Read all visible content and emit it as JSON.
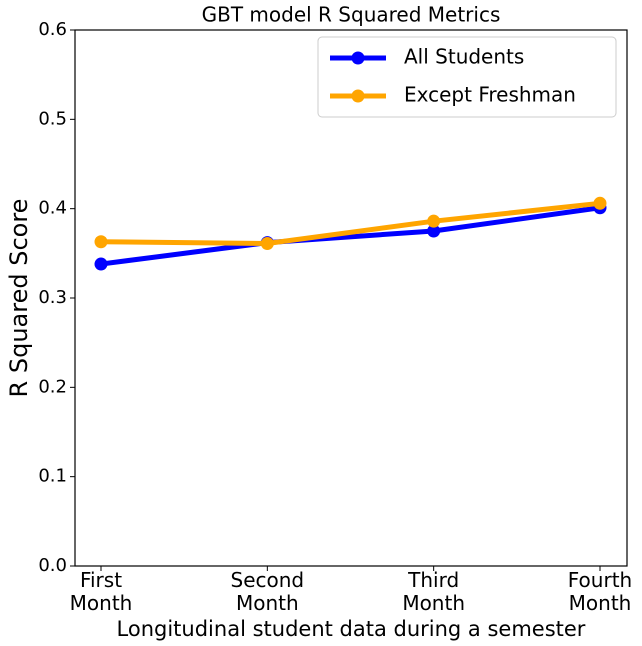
{
  "chart_data": {
    "type": "line",
    "title": "GBT model R Squared Metrics",
    "x_label": "Longitudinal student data during a semester",
    "y_label": "R Squared Score",
    "categories": [
      "First\nMonth",
      "Second\nMonth",
      "Third\nMonth",
      "Fourth\nMonth"
    ],
    "series": [
      {
        "name": "All Students",
        "color": "#0000ff",
        "values": [
          0.338,
          0.362,
          0.375,
          0.401
        ]
      },
      {
        "name": "Except Freshman",
        "color": "#ffa500",
        "values": [
          0.363,
          0.361,
          0.386,
          0.406
        ]
      }
    ],
    "ylim": [
      0,
      0.6
    ],
    "yticks": [
      {
        "value": 0,
        "label": "0.0"
      },
      0.1,
      0.2,
      0.3,
      0.4,
      0.5,
      {
        "value": 0.6,
        "label": "0.6"
      }
    ],
    "legend": "upper right"
  }
}
